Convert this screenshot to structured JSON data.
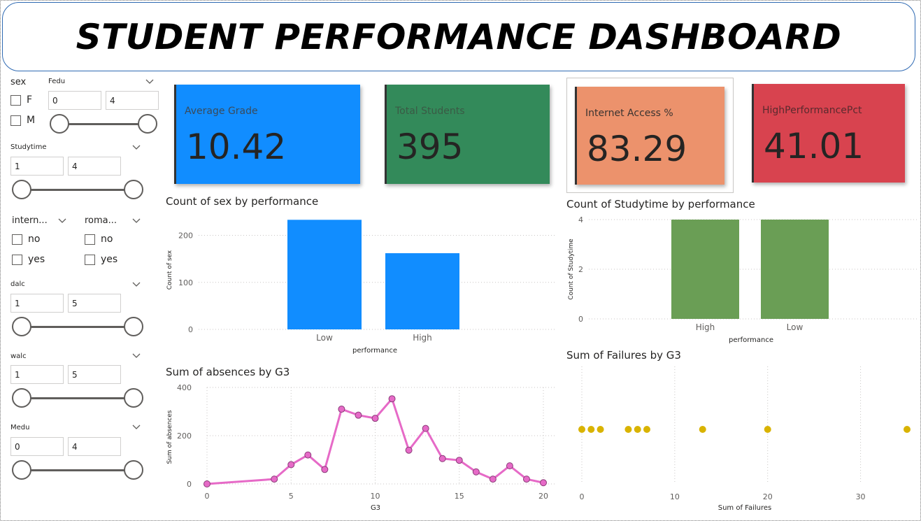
{
  "dashboard": {
    "title": "STUDENT PERFORMANCE DASHBOARD"
  },
  "slicers": {
    "sex": {
      "label": "sex",
      "options": [
        "F",
        "M"
      ]
    },
    "fedu": {
      "label": "Fedu",
      "min": "0",
      "max": "4"
    },
    "studytime": {
      "label": "Studytime",
      "min": "1",
      "max": "4"
    },
    "internet": {
      "label": "intern...",
      "options": [
        "no",
        "yes"
      ]
    },
    "romantic": {
      "label": "roma...",
      "options": [
        "no",
        "yes"
      ]
    },
    "dalc": {
      "label": "dalc",
      "min": "1",
      "max": "5"
    },
    "walc": {
      "label": "walc",
      "min": "1",
      "max": "5"
    },
    "medu": {
      "label": "Medu",
      "min": "0",
      "max": "4"
    }
  },
  "kpis": [
    {
      "label": "Average Grade",
      "value": "10.42",
      "color": "#118dff",
      "label_color": "#3a4a5a"
    },
    {
      "label": "Total Students",
      "value": "395",
      "color": "#338a5a",
      "label_color": "#3a5a45"
    },
    {
      "label": "Internet Access %",
      "value": "83.29",
      "color": "#ec926c",
      "label_color": "#3a3330"
    },
    {
      "label": "HighPerformancePct",
      "value": "41.01",
      "color": "#d8434f",
      "label_color": "#5a2a2e"
    }
  ],
  "chart_data": [
    {
      "id": "sex-by-performance",
      "type": "bar",
      "title": "Count of sex by performance",
      "categories": [
        "Low",
        "High"
      ],
      "values": [
        233,
        162
      ],
      "xlabel": "performance",
      "ylabel": "Count of sex",
      "ylim": [
        0,
        240
      ],
      "yticks": [
        "0",
        "100",
        "200"
      ],
      "color": "#118dff",
      "grid": true
    },
    {
      "id": "studytime-by-performance",
      "type": "bar",
      "title": "Count of Studytime by performance",
      "categories": [
        "High",
        "Low"
      ],
      "values": [
        4,
        4
      ],
      "xlabel": "performance",
      "ylabel": "Count of Studytime",
      "ylim": [
        0,
        4
      ],
      "yticks": [
        "0",
        "2",
        "4"
      ],
      "color": "#6a9e55",
      "grid": true
    },
    {
      "id": "absences-by-g3",
      "type": "line",
      "title": "Sum of absences by G3",
      "x": [
        0,
        4,
        5,
        6,
        7,
        8,
        9,
        10,
        11,
        12,
        13,
        14,
        15,
        16,
        17,
        18,
        19,
        20
      ],
      "y": [
        0,
        20,
        80,
        120,
        60,
        310,
        285,
        272,
        353,
        140,
        230,
        105,
        98,
        50,
        20,
        75,
        20,
        5
      ],
      "xlabel": "G3",
      "ylabel": "Sum of absences",
      "xlim": [
        0,
        20
      ],
      "ylim": [
        0,
        400
      ],
      "xticks": [
        "0",
        "5",
        "10",
        "15",
        "20"
      ],
      "yticks": [
        "0",
        "200",
        "400"
      ],
      "color": "#e66ac7",
      "grid": true
    },
    {
      "id": "failures-by-g3",
      "type": "scatter",
      "title": "Sum of Failures by G3",
      "x": [
        0,
        1,
        2,
        5,
        6,
        7,
        13,
        20,
        35
      ],
      "y": [
        1,
        1,
        1,
        1,
        1,
        1,
        1,
        1,
        1
      ],
      "xlabel": "Sum of Failures",
      "xlim": [
        0,
        35
      ],
      "xticks": [
        "0",
        "10",
        "20",
        "30"
      ],
      "color": "#d9b300",
      "grid": true
    }
  ]
}
